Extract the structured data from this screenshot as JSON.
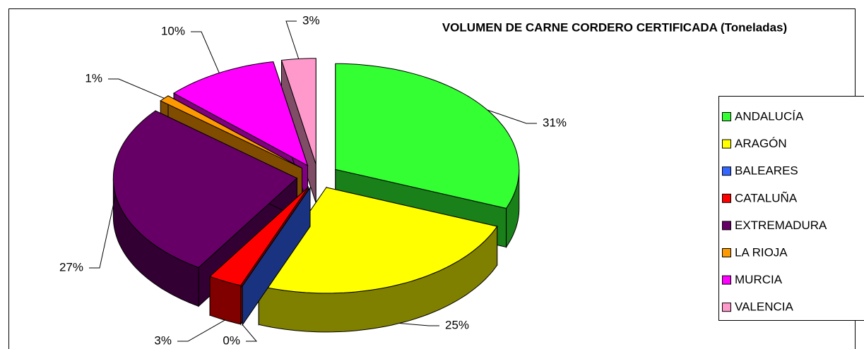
{
  "chart_data": {
    "type": "pie3d",
    "title": "VOLUMEN DE CARNE CORDERO CERTIFICADA (Toneladas)",
    "categories": [
      "ANDALUCÍA",
      "ARAGÓN",
      "BALEARES",
      "CATALUÑA",
      "EXTREMADURA",
      "LA RIOJA",
      "MURCIA",
      "VALENCIA"
    ],
    "values": [
      31,
      25,
      0,
      3,
      27,
      1,
      10,
      3
    ],
    "value_labels": [
      "31%",
      "25%",
      "0%",
      "3%",
      "27%",
      "1%",
      "10%",
      "3%"
    ],
    "colors": [
      "#33ff33",
      "#ffff00",
      "#3366ff",
      "#ff0000",
      "#660066",
      "#ff9900",
      "#ff00ff",
      "#ff99cc"
    ],
    "legend": "right"
  }
}
